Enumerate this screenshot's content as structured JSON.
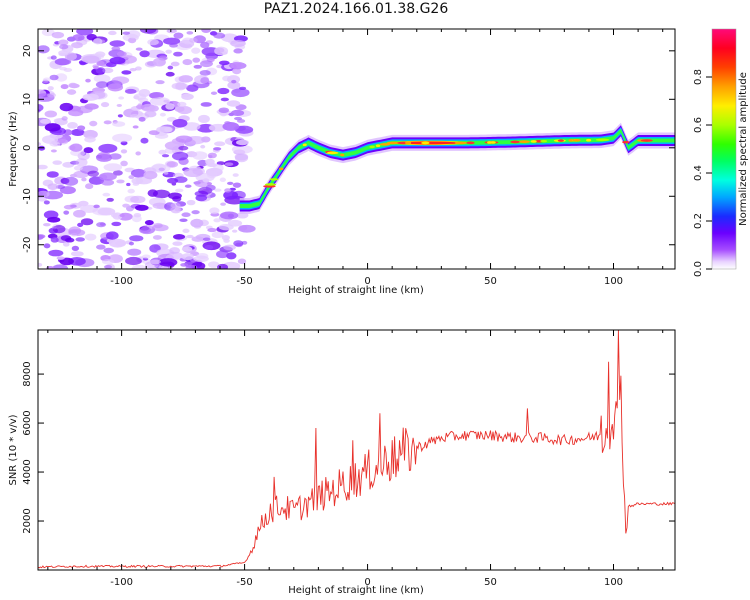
{
  "figure": {
    "title": "PAZ1.2024.166.01.38.G26"
  },
  "chart_data": [
    {
      "type": "heatmap",
      "xlabel": "Height of straight line (km)",
      "ylabel": "Frequency (Hz)",
      "xlim": [
        -134,
        125
      ],
      "ylim": [
        -25,
        24.5
      ],
      "xticks": [
        -100,
        -50,
        0,
        50,
        100
      ],
      "yticks": [
        -20,
        -10,
        0,
        10,
        20
      ],
      "colorbar": {
        "label": "Normalized spectral amplitude",
        "range": [
          0,
          1
        ],
        "ticks": [
          "0.0",
          "0.2",
          "0.4",
          "0.6",
          "0.8"
        ],
        "colormap": "gist_rainbow (white at 0)"
      },
      "noise_region": {
        "x": [
          -134,
          -52
        ],
        "frequency_span": [
          -25,
          24.5
        ],
        "amplitude": "low (0.0-0.2)"
      },
      "ridge": {
        "description": "frequency of peak spectral amplitude vs height",
        "x": [
          -52,
          -48,
          -44,
          -40,
          -36,
          -32,
          -28,
          -24,
          -20,
          -15,
          -10,
          -5,
          0,
          5,
          10,
          20,
          40,
          60,
          80,
          95,
          100,
          103,
          106,
          110,
          120,
          125
        ],
        "frequency": [
          -12,
          -12,
          -11.5,
          -8,
          -5,
          -2,
          0,
          1,
          0,
          -1,
          -1.5,
          -1,
          0,
          0.5,
          1,
          1,
          1,
          1.2,
          1.5,
          1.6,
          2,
          3.5,
          0,
          1.5,
          1.5,
          1.5
        ],
        "peak_amplitude_region": {
          "x": [
            10,
            40
          ],
          "amplitude": "about 0.9"
        }
      }
    },
    {
      "type": "line",
      "xlabel": "Height of straight line (km)",
      "ylabel": "SNR (10 * v/v)",
      "xlim": [
        -134,
        125
      ],
      "ylim": [
        0,
        9800
      ],
      "xticks": [
        -100,
        -50,
        0,
        50,
        100
      ],
      "yticks": [
        2000,
        4000,
        6000,
        8000
      ],
      "line_color": "#e8302a",
      "series": [
        {
          "name": "",
          "x": [
            -134,
            -120,
            -100,
            -80,
            -60,
            -50,
            -47,
            -45,
            -40,
            -35,
            -30,
            -25,
            -20,
            -15,
            -10,
            -5,
            0,
            5,
            10,
            15,
            20,
            25,
            30,
            40,
            50,
            60,
            70,
            80,
            90,
            95,
            98,
            100,
            102,
            103,
            104,
            105,
            106,
            110,
            120,
            125
          ],
          "y": [
            120,
            150,
            150,
            150,
            160,
            300,
            800,
            1500,
            2400,
            2600,
            2400,
            2700,
            3000,
            3200,
            3500,
            3700,
            4000,
            4300,
            4500,
            4800,
            5000,
            5200,
            5400,
            5500,
            5500,
            5400,
            5400,
            5300,
            5400,
            5500,
            5800,
            6500,
            5800,
            8500,
            4000,
            1500,
            2600,
            2700,
            2700,
            2700
          ]
        }
      ],
      "spikes": [
        {
          "x": -38,
          "y": 3800
        },
        {
          "x": -21,
          "y": 5800
        },
        {
          "x": -6,
          "y": 5300
        },
        {
          "x": 5,
          "y": 6400
        },
        {
          "x": 10,
          "y": 5300
        },
        {
          "x": 65,
          "y": 6600
        },
        {
          "x": 95,
          "y": 6300
        },
        {
          "x": 98,
          "y": 8500
        },
        {
          "x": 102,
          "y": 9800
        }
      ]
    }
  ]
}
